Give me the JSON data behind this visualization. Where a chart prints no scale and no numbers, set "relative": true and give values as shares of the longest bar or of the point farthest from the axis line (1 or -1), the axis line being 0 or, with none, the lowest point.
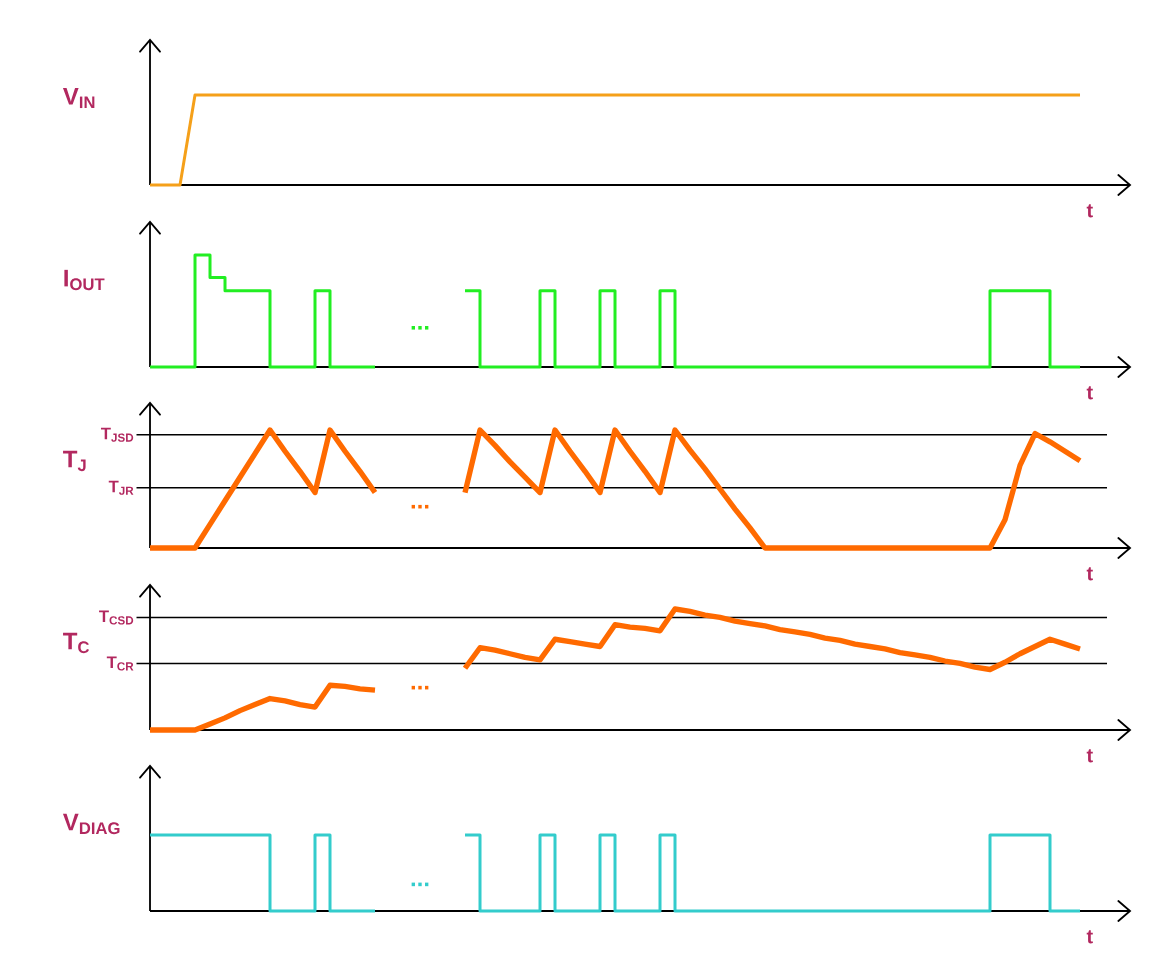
{
  "chart_data": [
    {
      "type": "line",
      "relative": true,
      "tick_labels": false,
      "ylabel": "V$_{IN}$",
      "xlabel": "t",
      "categories": [
        null,
        null,
        null,
        null,
        null,
        null,
        null,
        null,
        null,
        null,
        null,
        null,
        null,
        null,
        null,
        null,
        null,
        null,
        null,
        null,
        null,
        null,
        null,
        null,
        null,
        null,
        null,
        null,
        null,
        null,
        null,
        null,
        null,
        null,
        null,
        null,
        null,
        null,
        null,
        null,
        null,
        null,
        null,
        null,
        null,
        null,
        null,
        null,
        null,
        null,
        null,
        null,
        null,
        null,
        null,
        null,
        null,
        null,
        null,
        null,
        null,
        null,
        null
      ],
      "series": [
        {
          "color": "#f5a01a",
          "values": [
            0,
            0,
            0,
            1,
            1,
            1,
            1,
            1,
            1,
            1,
            1,
            1,
            1,
            1,
            1,
            1,
            1,
            1,
            1,
            1,
            1,
            1,
            1,
            1,
            1,
            1,
            1,
            1,
            1,
            1,
            1,
            1,
            1,
            1,
            1,
            1,
            1,
            1,
            1,
            1,
            1,
            1,
            1,
            1,
            1,
            1,
            1,
            1,
            1,
            1,
            1,
            1,
            1,
            1,
            1,
            1,
            1,
            1,
            1,
            1,
            1,
            1,
            1
          ]
        }
      ]
    },
    {
      "type": "step",
      "relative": true,
      "tick_labels": false,
      "ylabel": "I$_{OUT}$",
      "xlabel": "t",
      "annotations": [
        "..."
      ],
      "categories": [
        null,
        null,
        null,
        null,
        null,
        null,
        null,
        null,
        null,
        null,
        null,
        null,
        null,
        null,
        null,
        null,
        null,
        null,
        null,
        null,
        null,
        null,
        null,
        null,
        null,
        null,
        null,
        null,
        null,
        null,
        null,
        null,
        null,
        null,
        null,
        null,
        null,
        null,
        null,
        null,
        null,
        null,
        null,
        null,
        null,
        null,
        null,
        null,
        null,
        null,
        null,
        null,
        null,
        null,
        null,
        null,
        null,
        null,
        null,
        null,
        null,
        null,
        null
      ],
      "series": [
        {
          "color": "#22ee22",
          "values": [
            0,
            0,
            0,
            1,
            0.8,
            0.68,
            0.68,
            0.68,
            0,
            0,
            0,
            0.68,
            0,
            0,
            0,
            0,
            null,
            null,
            null,
            null,
            null,
            0.68,
            0,
            0,
            0,
            0,
            0.68,
            0,
            0,
            0,
            0.68,
            0,
            0,
            0,
            0.68,
            0,
            0,
            0,
            0,
            0,
            0,
            0,
            0,
            0,
            0,
            0,
            0,
            0,
            0,
            0,
            0,
            0,
            0,
            0,
            0,
            0,
            0.68,
            0.68,
            0.68,
            0.68,
            0,
            0,
            0
          ]
        }
      ]
    },
    {
      "type": "line",
      "relative": true,
      "tick_labels": false,
      "ylabel": "T$_{J}$",
      "xlabel": "t",
      "annotations": [
        "..."
      ],
      "ref_lines": [
        {
          "axis": "y",
          "value": 0.96,
          "label": "T$_{JSD}$"
        },
        {
          "axis": "y",
          "value": 0.51,
          "label": "T$_{JR}$"
        }
      ],
      "categories": [
        null,
        null,
        null,
        null,
        null,
        null,
        null,
        null,
        null,
        null,
        null,
        null,
        null,
        null,
        null,
        null,
        null,
        null,
        null,
        null,
        null,
        null,
        null,
        null,
        null,
        null,
        null,
        null,
        null,
        null,
        null,
        null,
        null,
        null,
        null,
        null,
        null,
        null,
        null,
        null,
        null,
        null,
        null,
        null,
        null,
        null,
        null,
        null,
        null,
        null,
        null,
        null,
        null,
        null,
        null,
        null,
        null,
        null,
        null,
        null,
        null,
        null,
        null
      ],
      "series": [
        {
          "color": "#ff6a00",
          "values": [
            0,
            0,
            0,
            0,
            0.2,
            0.4,
            0.6,
            0.8,
            1,
            0.82,
            0.65,
            0.47,
            1,
            0.82,
            0.65,
            0.47,
            null,
            null,
            null,
            null,
            null,
            0.47,
            1,
            0.87,
            0.73,
            0.6,
            0.47,
            1,
            0.82,
            0.65,
            0.47,
            1,
            0.82,
            0.65,
            0.47,
            1,
            0.83,
            0.67,
            0.5,
            0.33,
            0.17,
            0,
            0,
            0,
            0,
            0,
            0,
            0,
            0,
            0,
            0,
            0,
            0,
            0,
            0,
            0,
            0,
            0.24,
            0.7,
            0.97,
            0.9,
            0.82,
            0.74
          ]
        }
      ]
    },
    {
      "type": "line",
      "relative": true,
      "tick_labels": false,
      "ylabel": "T$_{C}$",
      "xlabel": "t",
      "annotations": [
        "..."
      ],
      "ref_lines": [
        {
          "axis": "y",
          "value": 0.93,
          "label": "T$_{CSD}$"
        },
        {
          "axis": "y",
          "value": 0.55,
          "label": "T$_{CR}$"
        }
      ],
      "categories": [
        null,
        null,
        null,
        null,
        null,
        null,
        null,
        null,
        null,
        null,
        null,
        null,
        null,
        null,
        null,
        null,
        null,
        null,
        null,
        null,
        null,
        null,
        null,
        null,
        null,
        null,
        null,
        null,
        null,
        null,
        null,
        null,
        null,
        null,
        null,
        null,
        null,
        null,
        null,
        null,
        null,
        null,
        null,
        null,
        null,
        null,
        null,
        null,
        null,
        null,
        null,
        null,
        null,
        null,
        null,
        null,
        null,
        null,
        null,
        null,
        null,
        null,
        null
      ],
      "series": [
        {
          "color": "#ff6a00",
          "values": [
            0,
            0,
            0,
            0,
            0.05,
            0.1,
            0.16,
            0.21,
            0.26,
            0.24,
            0.21,
            0.19,
            0.37,
            0.36,
            0.34,
            0.33,
            null,
            null,
            null,
            null,
            null,
            0.51,
            0.68,
            0.66,
            0.63,
            0.6,
            0.58,
            0.75,
            0.73,
            0.71,
            0.69,
            0.87,
            0.85,
            0.84,
            0.82,
            1,
            0.98,
            0.95,
            0.93,
            0.9,
            0.88,
            0.86,
            0.83,
            0.81,
            0.79,
            0.76,
            0.74,
            0.71,
            0.69,
            0.67,
            0.64,
            0.62,
            0.6,
            0.57,
            0.55,
            0.52,
            0.5,
            0.56,
            0.63,
            0.69,
            0.75,
            0.71,
            0.67
          ]
        }
      ]
    },
    {
      "type": "step",
      "relative": true,
      "tick_labels": false,
      "ylabel": "V$_{DIAG}$",
      "xlabel": "t",
      "annotations": [
        "..."
      ],
      "categories": [
        null,
        null,
        null,
        null,
        null,
        null,
        null,
        null,
        null,
        null,
        null,
        null,
        null,
        null,
        null,
        null,
        null,
        null,
        null,
        null,
        null,
        null,
        null,
        null,
        null,
        null,
        null,
        null,
        null,
        null,
        null,
        null,
        null,
        null,
        null,
        null,
        null,
        null,
        null,
        null,
        null,
        null,
        null,
        null,
        null,
        null,
        null,
        null,
        null,
        null,
        null,
        null,
        null,
        null,
        null,
        null,
        null,
        null,
        null,
        null,
        null,
        null,
        null
      ],
      "series": [
        {
          "color": "#33cccc",
          "values": [
            1,
            1,
            1,
            1,
            1,
            1,
            1,
            1,
            0,
            0,
            0,
            1,
            0,
            0,
            0,
            0,
            null,
            null,
            null,
            null,
            null,
            1,
            0,
            0,
            0,
            0,
            1,
            0,
            0,
            0,
            1,
            0,
            0,
            0,
            1,
            0,
            0,
            0,
            0,
            0,
            0,
            0,
            0,
            0,
            0,
            0,
            0,
            0,
            0,
            0,
            0,
            0,
            0,
            0,
            0,
            0,
            1,
            1,
            1,
            1,
            0,
            0,
            0
          ]
        }
      ]
    }
  ]
}
